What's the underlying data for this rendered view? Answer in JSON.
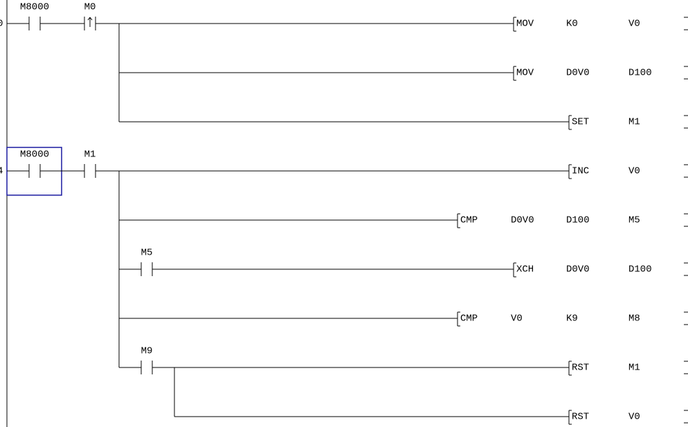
{
  "rungs": [
    {
      "step": "0",
      "contacts": [
        {
          "label": "M8000"
        },
        {
          "label": "M0"
        }
      ],
      "lines": [
        {
          "op": "MOV",
          "operands": [
            "K0",
            "V0"
          ]
        },
        {
          "op": "MOV",
          "operands": [
            "D0V0",
            "D100"
          ]
        },
        {
          "op": "SET",
          "operands": [
            "M1"
          ]
        }
      ]
    },
    {
      "step": "4",
      "contacts": [
        {
          "label": "M8000"
        },
        {
          "label": "M1"
        }
      ],
      "lines": [
        {
          "op": "INC",
          "operands": [
            "V0"
          ]
        },
        {
          "op": "CMP",
          "operands": [
            "D0V0",
            "D100",
            "M5"
          ]
        },
        {
          "contact": "M5",
          "op": "XCH",
          "operands": [
            "D0V0",
            "D100"
          ]
        },
        {
          "op": "CMP",
          "operands": [
            "V0",
            "K9",
            "M8"
          ]
        },
        {
          "contact": "M9",
          "op": "RST",
          "operands": [
            "M1"
          ]
        },
        {
          "op": "RST",
          "operands": [
            "V0"
          ]
        }
      ]
    }
  ]
}
